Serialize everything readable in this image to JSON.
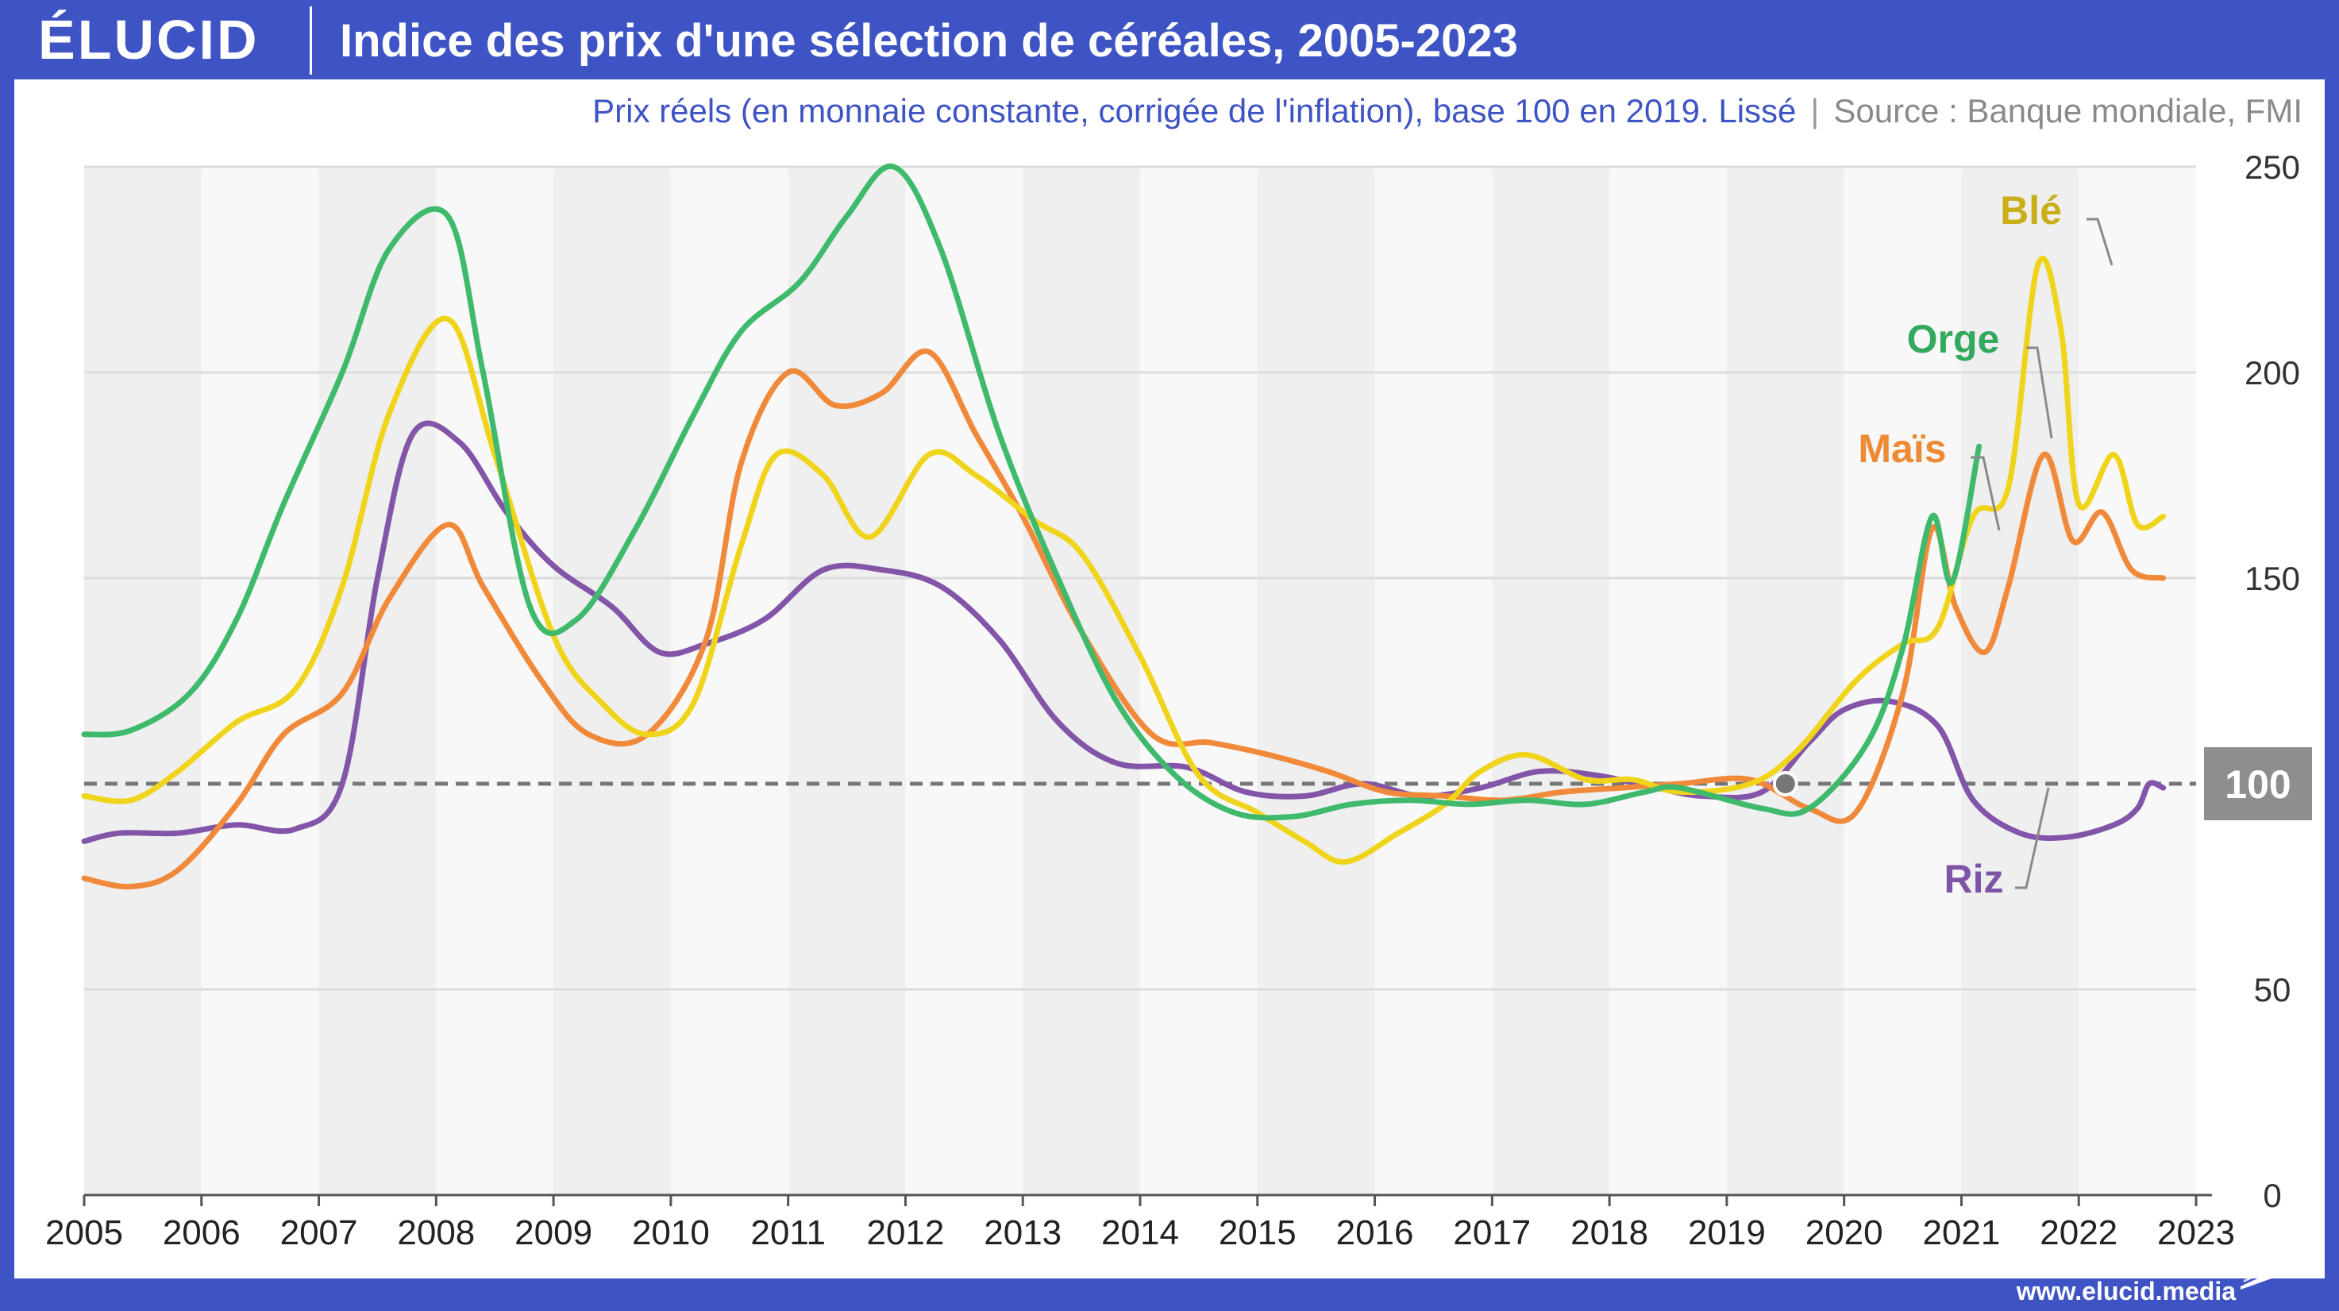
{
  "header": {
    "logo": "ÉLUCID",
    "title": "Indice des prix d'une sélection de céréales, 2005-2023",
    "subtitle": "Prix réels (en monnaie constante, corrigée de l'inflation), base 100 en 2019. Lissé",
    "separator": "|",
    "source": "Source : Banque mondiale, FMI"
  },
  "footer": {
    "url": "www.elucid.media"
  },
  "chart_data": {
    "type": "line",
    "title": "Indice des prix d'une sélection de céréales, 2005-2023",
    "subtitle": "Prix réels (en monnaie constante, corrigée de l'inflation), base 100 en 2019. Lissé",
    "xlabel": "",
    "ylabel": "",
    "xlim": [
      2005,
      2023
    ],
    "ylim": [
      0,
      250
    ],
    "x_ticks": [
      "2005",
      "2006",
      "2007",
      "2008",
      "2009",
      "2010",
      "2011",
      "2012",
      "2013",
      "2014",
      "2015",
      "2016",
      "2017",
      "2018",
      "2019",
      "2020",
      "2021",
      "2022",
      "2023"
    ],
    "y_ticks": [
      "0",
      "50",
      "100",
      "150",
      "200",
      "250"
    ],
    "grid": "horizontal",
    "reference_line": {
      "value": 100,
      "label": "100"
    },
    "base_marker": {
      "x": 2019.5,
      "y": 100
    },
    "legend": "direct labels",
    "series": [
      {
        "name": "Blé",
        "color": "#f0d41c",
        "label_color": "#c9ae1a",
        "points": [
          [
            2005,
            97
          ],
          [
            2005.4,
            96
          ],
          [
            2005.8,
            103
          ],
          [
            2006.3,
            115
          ],
          [
            2006.8,
            123
          ],
          [
            2007.2,
            148
          ],
          [
            2007.6,
            190
          ],
          [
            2008.1,
            213
          ],
          [
            2008.5,
            180
          ],
          [
            2009,
            136
          ],
          [
            2009.4,
            120
          ],
          [
            2009.8,
            112
          ],
          [
            2010.2,
            120
          ],
          [
            2010.6,
            158
          ],
          [
            2010.9,
            180
          ],
          [
            2011.3,
            175
          ],
          [
            2011.7,
            160
          ],
          [
            2012.2,
            180
          ],
          [
            2012.6,
            175
          ],
          [
            2013.1,
            164
          ],
          [
            2013.5,
            156
          ],
          [
            2014,
            131
          ],
          [
            2014.5,
            102
          ],
          [
            2015,
            93
          ],
          [
            2015.4,
            86
          ],
          [
            2015.75,
            81
          ],
          [
            2016.2,
            88
          ],
          [
            2016.6,
            95
          ],
          [
            2016.9,
            103
          ],
          [
            2017.3,
            107
          ],
          [
            2017.8,
            101
          ],
          [
            2018.2,
            101
          ],
          [
            2018.6,
            98
          ],
          [
            2019.2,
            100
          ],
          [
            2019.6,
            108
          ],
          [
            2020.1,
            125
          ],
          [
            2020.5,
            134
          ],
          [
            2020.8,
            138
          ],
          [
            2021.1,
            165
          ],
          [
            2021.4,
            172
          ],
          [
            2021.65,
            226
          ],
          [
            2021.85,
            210
          ],
          [
            2022,
            168
          ],
          [
            2022.3,
            180
          ],
          [
            2022.5,
            163
          ],
          [
            2022.72,
            165
          ]
        ]
      },
      {
        "name": "Orge",
        "color": "#3fba6c",
        "label_color": "#33a85f",
        "points": [
          [
            2005,
            112
          ],
          [
            2005.4,
            113
          ],
          [
            2005.9,
            122
          ],
          [
            2006.3,
            140
          ],
          [
            2006.7,
            168
          ],
          [
            2007.2,
            200
          ],
          [
            2007.6,
            230
          ],
          [
            2008.1,
            238
          ],
          [
            2008.4,
            200
          ],
          [
            2008.8,
            143
          ],
          [
            2009.2,
            140
          ],
          [
            2009.7,
            162
          ],
          [
            2010.2,
            190
          ],
          [
            2010.6,
            210
          ],
          [
            2011.1,
            222
          ],
          [
            2011.5,
            238
          ],
          [
            2011.9,
            250
          ],
          [
            2012.3,
            230
          ],
          [
            2012.8,
            185
          ],
          [
            2013.3,
            150
          ],
          [
            2013.8,
            120
          ],
          [
            2014.3,
            102
          ],
          [
            2014.8,
            93
          ],
          [
            2015.3,
            92
          ],
          [
            2015.8,
            95
          ],
          [
            2016.3,
            96
          ],
          [
            2016.8,
            95
          ],
          [
            2017.3,
            96
          ],
          [
            2017.8,
            95
          ],
          [
            2018.3,
            98
          ],
          [
            2018.6,
            99
          ],
          [
            2019.3,
            94
          ],
          [
            2019.7,
            94
          ],
          [
            2020.2,
            110
          ],
          [
            2020.5,
            133
          ],
          [
            2020.75,
            165
          ],
          [
            2020.92,
            149
          ],
          [
            2021.15,
            182
          ]
        ]
      },
      {
        "name": "Maïs",
        "color": "#f08a3a",
        "label_color": "#ed8a33",
        "points": [
          [
            2005,
            77
          ],
          [
            2005.4,
            75
          ],
          [
            2005.8,
            79
          ],
          [
            2006.3,
            95
          ],
          [
            2006.7,
            112
          ],
          [
            2007.2,
            122
          ],
          [
            2007.6,
            145
          ],
          [
            2008.1,
            163
          ],
          [
            2008.4,
            148
          ],
          [
            2008.9,
            125
          ],
          [
            2009.3,
            112
          ],
          [
            2009.8,
            112
          ],
          [
            2010.3,
            135
          ],
          [
            2010.6,
            178
          ],
          [
            2011,
            200
          ],
          [
            2011.4,
            192
          ],
          [
            2011.8,
            195
          ],
          [
            2012.2,
            205
          ],
          [
            2012.6,
            185
          ],
          [
            2013,
            165
          ],
          [
            2013.5,
            137
          ],
          [
            2014.1,
            112
          ],
          [
            2014.6,
            110
          ],
          [
            2015.1,
            107
          ],
          [
            2015.6,
            103
          ],
          [
            2016.1,
            98
          ],
          [
            2016.6,
            97
          ],
          [
            2017.1,
            96
          ],
          [
            2017.6,
            98
          ],
          [
            2018.1,
            99
          ],
          [
            2018.6,
            100
          ],
          [
            2019.2,
            101
          ],
          [
            2019.7,
            94
          ],
          [
            2020.1,
            93
          ],
          [
            2020.5,
            122
          ],
          [
            2020.75,
            162
          ],
          [
            2020.95,
            143
          ],
          [
            2021.2,
            132
          ],
          [
            2021.4,
            148
          ],
          [
            2021.7,
            180
          ],
          [
            2021.95,
            159
          ],
          [
            2022.2,
            166
          ],
          [
            2022.45,
            152
          ],
          [
            2022.72,
            150
          ]
        ]
      },
      {
        "name": "Riz",
        "color": "#8255a8",
        "label_color": "#7d55a6",
        "points": [
          [
            2005,
            86
          ],
          [
            2005.3,
            88
          ],
          [
            2005.8,
            88
          ],
          [
            2006.3,
            90
          ],
          [
            2006.8,
            89
          ],
          [
            2007.2,
            100
          ],
          [
            2007.5,
            150
          ],
          [
            2007.8,
            185
          ],
          [
            2008.2,
            183
          ],
          [
            2008.6,
            166
          ],
          [
            2009,
            153
          ],
          [
            2009.5,
            143
          ],
          [
            2009.9,
            132
          ],
          [
            2010.3,
            134
          ],
          [
            2010.8,
            140
          ],
          [
            2011.3,
            152
          ],
          [
            2011.8,
            152
          ],
          [
            2012.3,
            148
          ],
          [
            2012.8,
            135
          ],
          [
            2013.3,
            115
          ],
          [
            2013.8,
            105
          ],
          [
            2014.4,
            104
          ],
          [
            2014.9,
            98
          ],
          [
            2015.4,
            97
          ],
          [
            2015.9,
            100
          ],
          [
            2016.4,
            97
          ],
          [
            2016.9,
            99
          ],
          [
            2017.4,
            103
          ],
          [
            2017.9,
            102
          ],
          [
            2018.4,
            99
          ],
          [
            2018.8,
            97
          ],
          [
            2019.3,
            98
          ],
          [
            2019.7,
            110
          ],
          [
            2020,
            118
          ],
          [
            2020.4,
            120
          ],
          [
            2020.8,
            114
          ],
          [
            2021.1,
            96
          ],
          [
            2021.5,
            88
          ],
          [
            2021.9,
            87
          ],
          [
            2022.3,
            90
          ],
          [
            2022.5,
            94
          ],
          [
            2022.6,
            100
          ],
          [
            2022.72,
            99
          ]
        ]
      }
    ]
  }
}
